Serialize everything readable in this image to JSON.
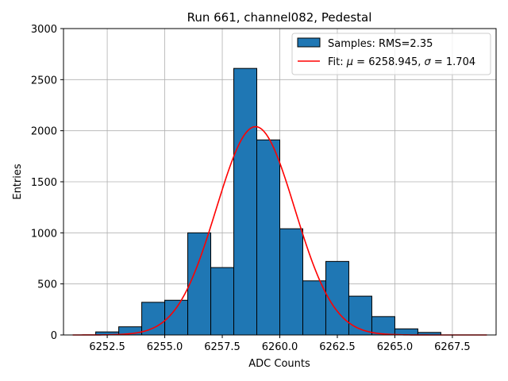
{
  "chart_data": {
    "type": "bar",
    "title": "Run 661, channel082, Pedestal",
    "xlabel": "ADC Counts",
    "ylabel": "Entries",
    "xlim": [
      6250.6,
      6269.4
    ],
    "ylim": [
      0,
      3000
    ],
    "xticks": [
      6252.5,
      6255.0,
      6257.5,
      6260.0,
      6262.5,
      6265.0,
      6267.5
    ],
    "xtick_labels": [
      "6252.5",
      "6255.0",
      "6257.5",
      "6260.0",
      "6262.5",
      "6265.0",
      "6267.5"
    ],
    "yticks": [
      0,
      500,
      1000,
      1500,
      2000,
      2500,
      3000
    ],
    "ytick_labels": [
      "0",
      "500",
      "1000",
      "1500",
      "2000",
      "2500",
      "3000"
    ],
    "grid": true,
    "legend_position": "top-right",
    "colors": {
      "bars": "#1f77b4",
      "bar_edge": "#000000",
      "fit": "#ff0000",
      "grid": "#b0b0b0"
    },
    "histogram": {
      "name": "Samples: RMS=2.35",
      "bin_edges": [
        6252,
        6253,
        6254,
        6255,
        6256,
        6257,
        6258,
        6259,
        6260,
        6261,
        6262,
        6263,
        6264,
        6265,
        6266,
        6267
      ],
      "counts": [
        30,
        80,
        320,
        340,
        1000,
        660,
        2610,
        1910,
        1040,
        530,
        720,
        380,
        180,
        60,
        25
      ]
    },
    "fit": {
      "name_prefix": "Fit: ",
      "mu_label": "μ",
      "mu_value": " = 6258.945, ",
      "sigma_label": "σ",
      "sigma_value": " = 1.704",
      "mu": 6258.945,
      "sigma": 1.704,
      "amplitude": 2040,
      "x_range": [
        6251.0,
        6269.0
      ]
    }
  }
}
